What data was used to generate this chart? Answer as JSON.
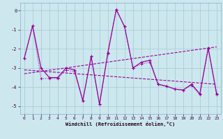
{
  "xlabel": "Windchill (Refroidissement éolien,°C)",
  "background_color": "#cce8ee",
  "grid_color": "#aaccd8",
  "line_color": "#990099",
  "xlim": [
    -0.5,
    23.5
  ],
  "ylim": [
    -5.4,
    0.4
  ],
  "yticks": [
    0,
    -1,
    -2,
    -3,
    -4,
    -5
  ],
  "xticks": [
    0,
    1,
    2,
    3,
    4,
    5,
    6,
    7,
    8,
    9,
    10,
    11,
    12,
    13,
    14,
    15,
    16,
    17,
    18,
    19,
    20,
    21,
    22,
    23
  ],
  "main_x": [
    0,
    1,
    2,
    3,
    4,
    5,
    6,
    7,
    8,
    9,
    10,
    11,
    12,
    13,
    14,
    15,
    16,
    17,
    18,
    19,
    20,
    21,
    22,
    23
  ],
  "main_y": [
    -2.5,
    -0.8,
    -3.0,
    -3.5,
    -3.5,
    -3.0,
    -3.1,
    -4.7,
    -2.4,
    -4.9,
    -2.2,
    0.05,
    -0.85,
    -3.0,
    -2.7,
    -2.6,
    -3.85,
    -3.95,
    -4.1,
    -4.15,
    -3.85,
    -4.35,
    -1.95,
    -4.35
  ],
  "series2_x": [
    0,
    1,
    2,
    3,
    4,
    5,
    6,
    7,
    8,
    9,
    10,
    11,
    12,
    13,
    14,
    15,
    16,
    17,
    18,
    19,
    20,
    21,
    22,
    23
  ],
  "series2_y": [
    -2.5,
    -0.8,
    -3.55,
    -3.55,
    -3.55,
    -3.1,
    -3.2,
    -4.7,
    -2.4,
    -4.9,
    -2.25,
    0.05,
    -0.85,
    -3.0,
    -2.8,
    -2.7,
    -3.85,
    -3.95,
    -4.1,
    -4.15,
    -3.9,
    -4.4,
    -2.0,
    -4.4
  ],
  "trend1_x": [
    0,
    23
  ],
  "trend1_y": [
    -3.1,
    -3.85
  ],
  "trend2_x": [
    0,
    23
  ],
  "trend2_y": [
    -3.3,
    -1.9
  ]
}
